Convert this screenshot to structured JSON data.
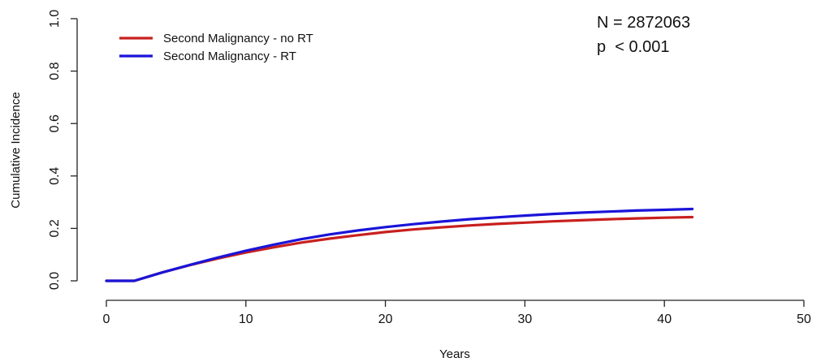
{
  "chart_data": {
    "type": "line",
    "xlabel": "Years",
    "ylabel": "Cumulative Incidence",
    "xlim": [
      0,
      50
    ],
    "ylim": [
      0,
      1
    ],
    "xticks": [
      0,
      10,
      20,
      30,
      40,
      50
    ],
    "yticks": [
      "0.0",
      "0.2",
      "0.4",
      "0.6",
      "0.8",
      "1.0"
    ],
    "grid": false,
    "legend_position": "top-left",
    "annotations": [
      "N = 2872063",
      "p  < 0.001"
    ],
    "series": [
      {
        "name": "Second Malignancy - no RT",
        "color": "#c8201e",
        "x": [
          0,
          2,
          4,
          6,
          8,
          10,
          12,
          14,
          16,
          18,
          20,
          22,
          24,
          26,
          28,
          30,
          32,
          34,
          36,
          38,
          40,
          42
        ],
        "y": [
          0.0,
          0.0,
          0.032,
          0.06,
          0.085,
          0.108,
          0.128,
          0.146,
          0.161,
          0.174,
          0.186,
          0.196,
          0.204,
          0.211,
          0.217,
          0.222,
          0.227,
          0.231,
          0.235,
          0.238,
          0.241,
          0.243
        ]
      },
      {
        "name": "Second Malignancy - RT",
        "color": "#1a14d8",
        "x": [
          0,
          2,
          4,
          6,
          8,
          10,
          12,
          14,
          16,
          18,
          20,
          22,
          24,
          26,
          28,
          30,
          32,
          34,
          36,
          38,
          40,
          42
        ],
        "y": [
          0.0,
          0.0,
          0.032,
          0.061,
          0.089,
          0.115,
          0.138,
          0.159,
          0.177,
          0.192,
          0.205,
          0.216,
          0.226,
          0.235,
          0.242,
          0.249,
          0.255,
          0.26,
          0.264,
          0.268,
          0.271,
          0.274
        ]
      }
    ]
  }
}
